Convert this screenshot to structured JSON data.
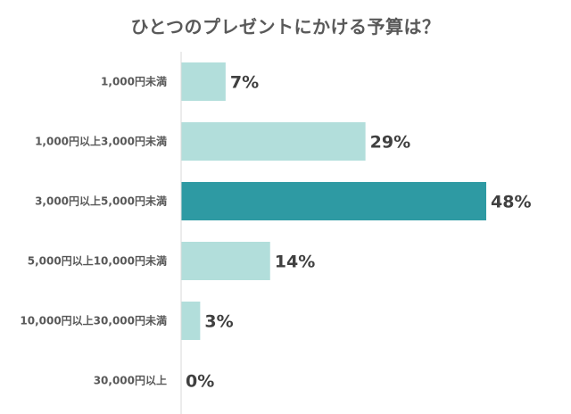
{
  "chart_data": {
    "type": "bar",
    "orientation": "horizontal",
    "title": "ひとつのプレゼントにかける予算は？",
    "categories": [
      "1,000円未満",
      "1,000円以上3,000円未満",
      "3,000円以上5,000円未満",
      "5,000円以上10,000円未満",
      "10,000円以上30,000円未満",
      "30,000円以上"
    ],
    "values": [
      7,
      29,
      48,
      14,
      3,
      0
    ],
    "value_labels": [
      "7%",
      "29%",
      "48%",
      "14%",
      "3%",
      "0%"
    ],
    "xlim": [
      0,
      48
    ],
    "grid": false,
    "legend": "none",
    "colors": {
      "default": "#b2dedb",
      "highlight": "#2e9aa3",
      "axis": "#d9d9d9"
    },
    "highlight_index": 2
  }
}
